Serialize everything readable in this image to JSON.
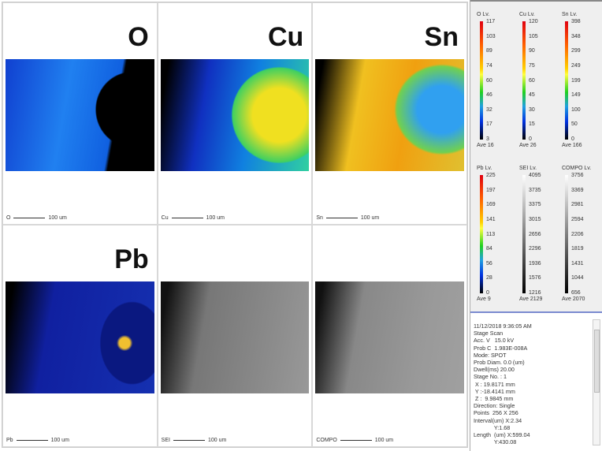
{
  "panels": [
    {
      "element": "O",
      "scale_label": "O",
      "scale_length": "100 um",
      "type": "color"
    },
    {
      "element": "Cu",
      "scale_label": "Cu",
      "scale_length": "100 um",
      "type": "color"
    },
    {
      "element": "Sn",
      "scale_label": "Sn",
      "scale_length": "100 um",
      "type": "color"
    },
    {
      "element": "Pb",
      "scale_label": "Pb",
      "scale_length": "100 um",
      "type": "color"
    },
    {
      "element": "",
      "scale_label": "SEI",
      "scale_length": "100 um",
      "type": "gray"
    },
    {
      "element": "",
      "scale_label": "COMPO",
      "scale_length": "100 um",
      "type": "gray"
    }
  ],
  "level_scales": [
    {
      "title": "O Lv.",
      "ticks": [
        "117",
        "103",
        "89",
        "74",
        "60",
        "46",
        "32",
        "17",
        "3"
      ],
      "ave": "Ave 16",
      "colormap": "rainbow"
    },
    {
      "title": "Cu Lv.",
      "ticks": [
        "120",
        "105",
        "90",
        "75",
        "60",
        "45",
        "30",
        "15",
        "0"
      ],
      "ave": "Ave 26",
      "colormap": "rainbow"
    },
    {
      "title": "Sn Lv.",
      "ticks": [
        "398",
        "348",
        "299",
        "249",
        "199",
        "149",
        "100",
        "50",
        "0"
      ],
      "ave": "Ave 166",
      "colormap": "rainbow"
    },
    {
      "title": "Pb Lv.",
      "ticks": [
        "225",
        "197",
        "169",
        "141",
        "113",
        "84",
        "56",
        "28",
        "0"
      ],
      "ave": "Ave 9",
      "colormap": "rainbow"
    },
    {
      "title": "SEI Lv.",
      "ticks": [
        "4095",
        "3735",
        "3375",
        "3015",
        "2656",
        "2296",
        "1936",
        "1576",
        "1216"
      ],
      "ave": "Ave 2129",
      "colormap": "gray"
    },
    {
      "title": "COMPO  Lv.",
      "ticks": [
        "3756",
        "3369",
        "2981",
        "2594",
        "2206",
        "1819",
        "1431",
        "1044",
        "656"
      ],
      "ave": "Ave 2070",
      "colormap": "gray"
    }
  ],
  "info_lines": [
    "11/12/2018 9:36:05 AM",
    "Stage Scan",
    "Acc. V   15.0 kV",
    "Prob C  1.983E-008A",
    "Mode: SPOT",
    "Prob Diam. 0.0 (um)",
    "Dwell(ms) 20.00",
    "Stage No. : 1",
    " X : 19.8171 mm",
    " Y :-18.4141 mm",
    " Z :  9.9845 mm",
    "Direction: Single",
    "Points  256 X 256",
    "Interval(um) X:2.34",
    "             Y:1.68",
    "Length  (um) X:599.04",
    "             Y:430.08"
  ]
}
